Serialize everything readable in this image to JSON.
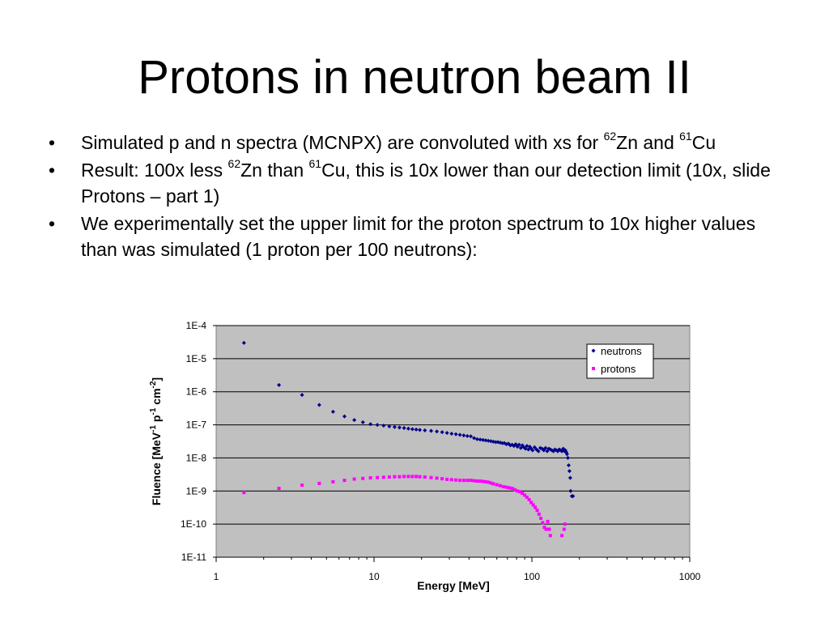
{
  "slide": {
    "title": "Protons in neutron beam II",
    "bullets": [
      {
        "parts": [
          "Simulated p and n spectra (MCNPX) are convoluted with xs for ",
          "62",
          "Zn and ",
          "61",
          "Cu"
        ]
      },
      {
        "parts": [
          "Result: 100x less ",
          "62",
          "Zn than ",
          "61",
          "Cu, this is 10x lower than our detection limit (10x, slide Protons – part 1)"
        ]
      },
      {
        "parts": [
          "We experimentally set the upper limit for the proton spectrum to 10x higher values than was simulated (1 proton per 100 neutrons):"
        ]
      }
    ]
  },
  "chart_data": {
    "type": "scatter",
    "x_scale": "log",
    "y_scale": "log",
    "xlim": [
      1,
      1000
    ],
    "ylim": [
      1e-11,
      0.0001
    ],
    "x_ticks": [
      1,
      10,
      100,
      1000
    ],
    "x_tick_labels": [
      "1",
      "10",
      "100",
      "1000"
    ],
    "y_ticks": [
      0.0001,
      1e-05,
      1e-06,
      1e-07,
      1e-08,
      1e-09,
      1e-10,
      1e-11
    ],
    "y_tick_labels": [
      "1E-4",
      "1E-5",
      "1E-6",
      "1E-7",
      "1E-8",
      "1E-9",
      "1E-10",
      "1E-11"
    ],
    "xlabel": "Energy [MeV]",
    "ylabel": {
      "parts": [
        "Fluence [MeV",
        "-1",
        " p",
        "-1",
        " cm",
        "-2",
        "]"
      ]
    },
    "grid": "horizontal",
    "legend_position": "top-right",
    "plot_background": "#c0c0c0",
    "series": [
      {
        "name": "neutrons",
        "color": "#00008b",
        "marker": "diamond",
        "points": [
          [
            1.5,
            3e-05
          ],
          [
            2.5,
            1.6e-06
          ],
          [
            3.5,
            8e-07
          ],
          [
            4.5,
            4e-07
          ],
          [
            5.5,
            2.5e-07
          ],
          [
            6.5,
            1.8e-07
          ],
          [
            7.5,
            1.4e-07
          ],
          [
            8.5,
            1.2e-07
          ],
          [
            9.5,
            1.05e-07
          ],
          [
            10.5,
            1e-07
          ],
          [
            11.5,
            9.5e-08
          ],
          [
            12.5,
            9e-08
          ],
          [
            13.5,
            8.6e-08
          ],
          [
            14.5,
            8.3e-08
          ],
          [
            15.5,
            8e-08
          ],
          [
            16.5,
            7.7e-08
          ],
          [
            17.5,
            7.4e-08
          ],
          [
            18.5,
            7.2e-08
          ],
          [
            19.5,
            7e-08
          ],
          [
            21,
            6.8e-08
          ],
          [
            23,
            6.6e-08
          ],
          [
            25,
            6.3e-08
          ],
          [
            27,
            6e-08
          ],
          [
            29,
            5.7e-08
          ],
          [
            31,
            5.4e-08
          ],
          [
            33,
            5.2e-08
          ],
          [
            35,
            5e-08
          ],
          [
            37,
            4.8e-08
          ],
          [
            39,
            4.6e-08
          ],
          [
            41,
            4.5e-08
          ],
          [
            43,
            4e-08
          ],
          [
            45,
            3.7e-08
          ],
          [
            47,
            3.6e-08
          ],
          [
            49,
            3.5e-08
          ],
          [
            51,
            3.4e-08
          ],
          [
            53,
            3.3e-08
          ],
          [
            55,
            3.2e-08
          ],
          [
            57,
            3.1e-08
          ],
          [
            59,
            3e-08
          ],
          [
            61,
            3e-08
          ],
          [
            63,
            2.9e-08
          ],
          [
            65,
            2.8e-08
          ],
          [
            67,
            2.8e-08
          ],
          [
            69,
            2.6e-08
          ],
          [
            71,
            2.7e-08
          ],
          [
            73,
            2.4e-08
          ],
          [
            75,
            2.5e-08
          ],
          [
            77,
            2.3e-08
          ],
          [
            79,
            2.6e-08
          ],
          [
            81,
            2.2e-08
          ],
          [
            83,
            2.5e-08
          ],
          [
            85,
            2e-08
          ],
          [
            87,
            2.4e-08
          ],
          [
            89,
            2.1e-08
          ],
          [
            91,
            1.9e-08
          ],
          [
            93,
            2.3e-08
          ],
          [
            95,
            1.8e-08
          ],
          [
            97,
            2.2e-08
          ],
          [
            99,
            1.9e-08
          ],
          [
            101,
            1.7e-08
          ],
          [
            104,
            2.1e-08
          ],
          [
            107,
            1.8e-08
          ],
          [
            110,
            1.6e-08
          ],
          [
            113,
            2e-08
          ],
          [
            116,
            1.9e-08
          ],
          [
            119,
            1.7e-08
          ],
          [
            122,
            2e-08
          ],
          [
            125,
            1.6e-08
          ],
          [
            128,
            1.9e-08
          ],
          [
            131,
            1.8e-08
          ],
          [
            134,
            1.7e-08
          ],
          [
            137,
            1.6e-08
          ],
          [
            140,
            1.8e-08
          ],
          [
            143,
            1.7e-08
          ],
          [
            146,
            1.6e-08
          ],
          [
            149,
            1.8e-08
          ],
          [
            152,
            1.7e-08
          ],
          [
            155,
            1.6e-08
          ],
          [
            158,
            1.9e-08
          ],
          [
            161,
            1.6e-08
          ],
          [
            163,
            1.7e-08
          ],
          [
            165,
            1.5e-08
          ],
          [
            167,
            1.3e-08
          ],
          [
            169,
            1e-08
          ],
          [
            171,
            6e-09
          ],
          [
            173,
            4e-09
          ],
          [
            175,
            2.5e-09
          ],
          [
            176,
            1e-09
          ],
          [
            179,
            7e-10
          ],
          [
            182,
            7e-10
          ]
        ]
      },
      {
        "name": "protons",
        "color": "#ff00ff",
        "marker": "square",
        "points": [
          [
            1.5,
            9e-10
          ],
          [
            2.5,
            1.2e-09
          ],
          [
            3.5,
            1.5e-09
          ],
          [
            4.5,
            1.7e-09
          ],
          [
            5.5,
            1.9e-09
          ],
          [
            6.5,
            2.1e-09
          ],
          [
            7.5,
            2.3e-09
          ],
          [
            8.5,
            2.4e-09
          ],
          [
            9.5,
            2.5e-09
          ],
          [
            10.5,
            2.55e-09
          ],
          [
            11.5,
            2.6e-09
          ],
          [
            12.5,
            2.65e-09
          ],
          [
            13.5,
            2.7e-09
          ],
          [
            14.5,
            2.7e-09
          ],
          [
            15.5,
            2.75e-09
          ],
          [
            16.5,
            2.75e-09
          ],
          [
            17.5,
            2.75e-09
          ],
          [
            18.5,
            2.75e-09
          ],
          [
            19.5,
            2.7e-09
          ],
          [
            21,
            2.65e-09
          ],
          [
            23,
            2.55e-09
          ],
          [
            25,
            2.45e-09
          ],
          [
            27,
            2.35e-09
          ],
          [
            29,
            2.25e-09
          ],
          [
            31,
            2.2e-09
          ],
          [
            33,
            2.15e-09
          ],
          [
            35,
            2.1e-09
          ],
          [
            37,
            2.1e-09
          ],
          [
            39,
            2.1e-09
          ],
          [
            41,
            2.1e-09
          ],
          [
            43,
            2.05e-09
          ],
          [
            45,
            2e-09
          ],
          [
            47,
            2e-09
          ],
          [
            49,
            1.95e-09
          ],
          [
            51,
            1.9e-09
          ],
          [
            53,
            1.85e-09
          ],
          [
            55,
            1.75e-09
          ],
          [
            57,
            1.65e-09
          ],
          [
            60,
            1.55e-09
          ],
          [
            63,
            1.45e-09
          ],
          [
            66,
            1.35e-09
          ],
          [
            69,
            1.3e-09
          ],
          [
            72,
            1.25e-09
          ],
          [
            75,
            1.2e-09
          ],
          [
            78,
            1.1e-09
          ],
          [
            81,
            1e-09
          ],
          [
            84,
            9.5e-10
          ],
          [
            87,
            8.5e-10
          ],
          [
            90,
            7.5e-10
          ],
          [
            93,
            6.5e-10
          ],
          [
            96,
            5.5e-10
          ],
          [
            99,
            4.5e-10
          ],
          [
            102,
            3.8e-10
          ],
          [
            105,
            3.2e-10
          ],
          [
            108,
            2.6e-10
          ],
          [
            111,
            2e-10
          ],
          [
            114,
            1.5e-10
          ],
          [
            117,
            1.1e-10
          ],
          [
            120,
            8e-11
          ],
          [
            123,
            7e-11
          ],
          [
            126,
            1.2e-10
          ],
          [
            129,
            7e-11
          ],
          [
            131,
            4.5e-11
          ],
          [
            155,
            4.5e-11
          ],
          [
            160,
            7e-11
          ],
          [
            162,
            1e-10
          ]
        ]
      }
    ]
  }
}
